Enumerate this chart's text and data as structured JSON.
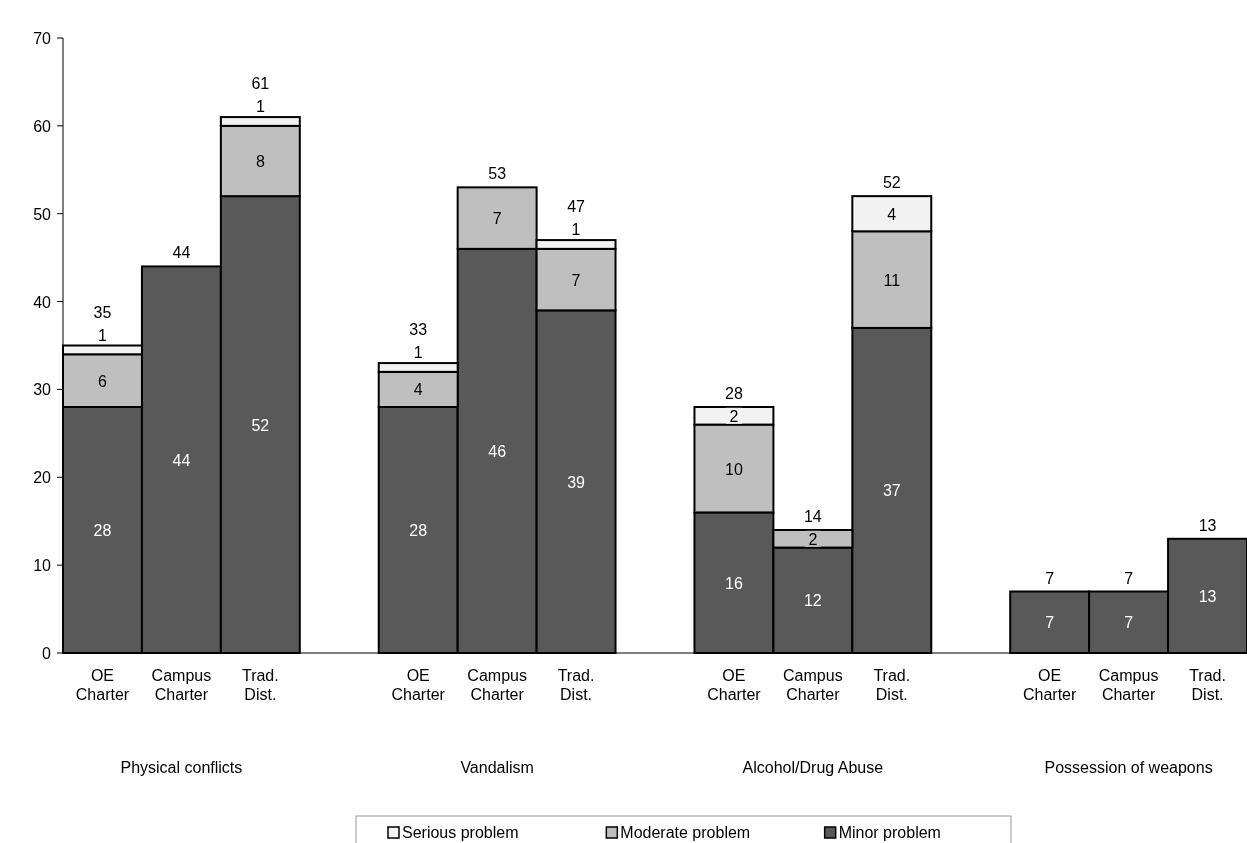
{
  "chart_data": {
    "type": "bar",
    "stacked": true,
    "categories": [
      "OE Charter",
      "Campus Charter",
      "Trad. Dist.",
      null,
      "OE Charter",
      "Campus Charter",
      "Trad. Dist.",
      null,
      "OE Charter",
      "Campus Charter",
      "Trad. Dist.",
      null,
      "OE Charter",
      "Campus Charter",
      "Trad. Dist."
    ],
    "series": [
      {
        "name": "Minor problem",
        "color": "#595959",
        "values": [
          28,
          44,
          52,
          null,
          28,
          46,
          39,
          null,
          16,
          12,
          37,
          null,
          7,
          7,
          13
        ]
      },
      {
        "name": "Moderate problem",
        "color": "#bfbfbf",
        "values": [
          6,
          null,
          8,
          null,
          4,
          7,
          7,
          null,
          10,
          2,
          11,
          null,
          null,
          null,
          null
        ]
      },
      {
        "name": "Serious problem",
        "color": "#f2f2f2",
        "values": [
          1,
          null,
          1,
          null,
          1,
          null,
          1,
          null,
          2,
          null,
          4,
          null,
          null,
          null,
          null
        ]
      }
    ],
    "totals": [
      "35",
      "44",
      "61",
      null,
      "33",
      "53",
      "47",
      null,
      "28",
      "14",
      "52",
      null,
      "7",
      "7",
      "13"
    ],
    "annotations": [
      "Physical conflicts",
      "Vandalism",
      "Alcohol/Drug Abuse",
      "Possession of weapons"
    ],
    "ylim": [
      0,
      70
    ],
    "yticks": [
      0,
      10,
      20,
      30,
      40,
      50,
      60,
      70
    ],
    "data_labels": true,
    "grid": false,
    "legend": "bottom"
  }
}
